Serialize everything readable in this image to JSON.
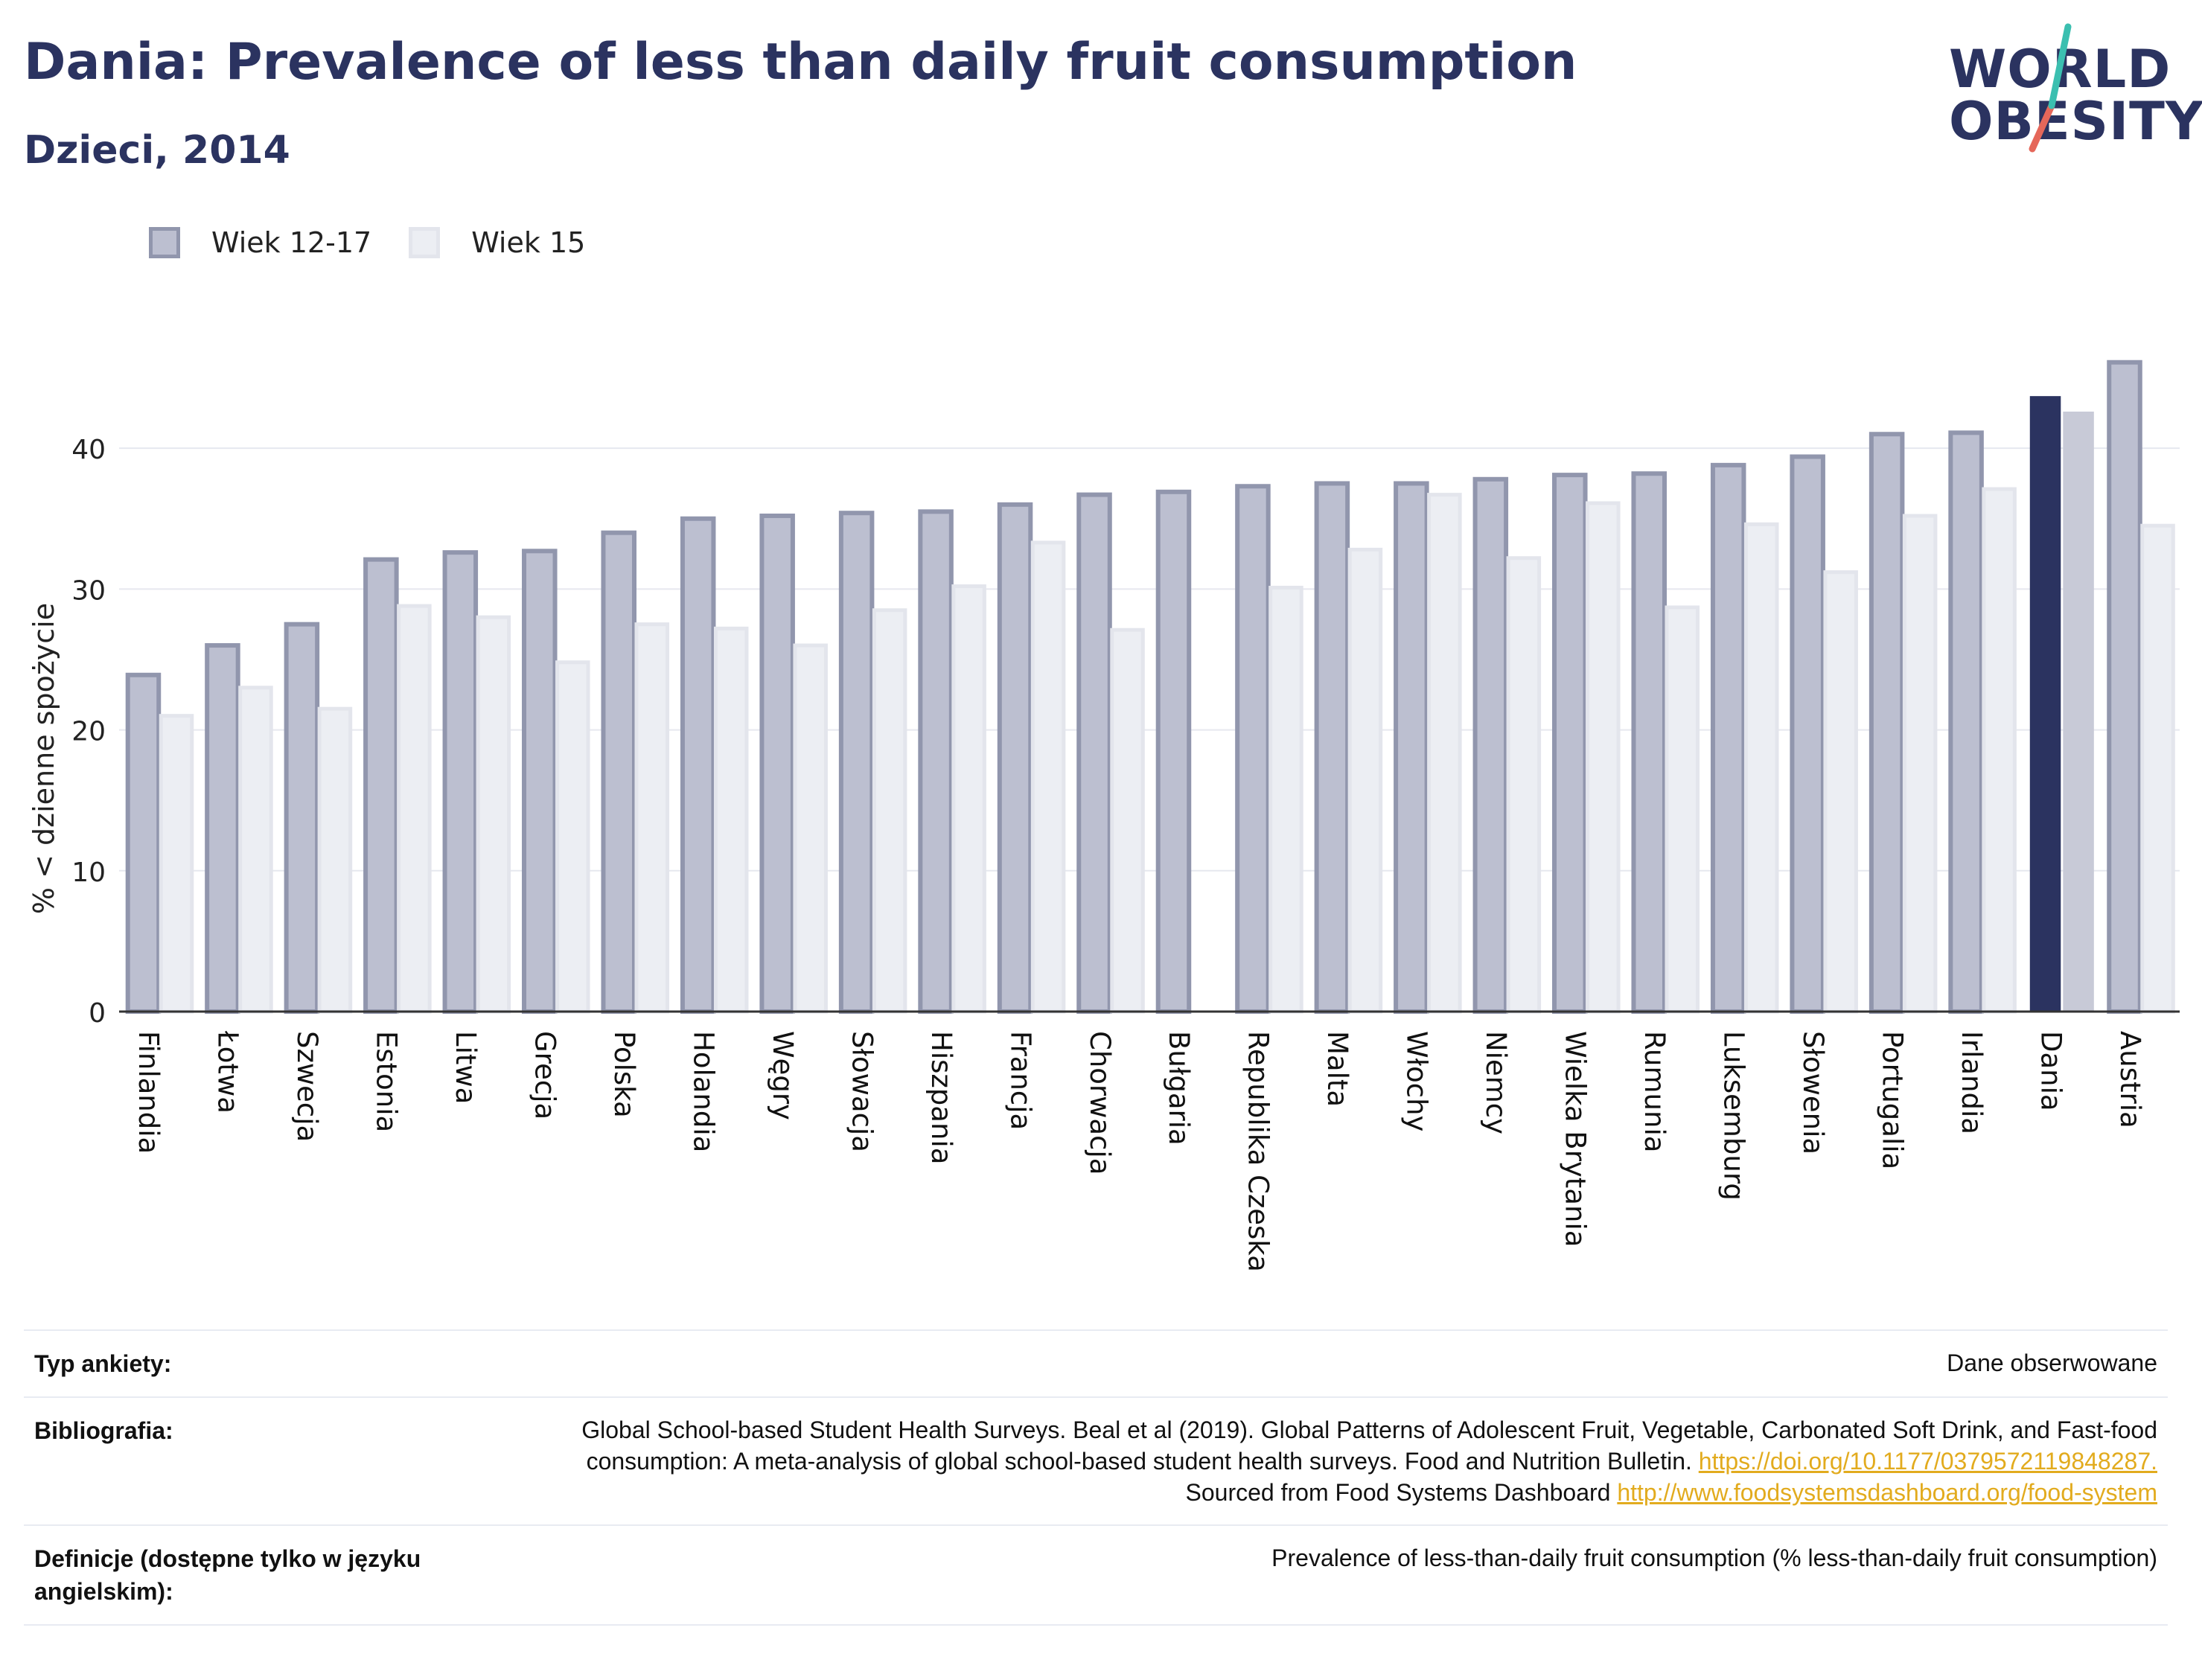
{
  "header": {
    "title": "Dania: Prevalence of less than daily fruit consumption",
    "subtitle": "Dzieci, 2014"
  },
  "logo": {
    "line1": "WORLD",
    "line2": "OBESITY",
    "accent_teal": "#3bbfb0",
    "accent_red": "#e5675a"
  },
  "legend": {
    "items": [
      {
        "label": "Wiek 12-17",
        "color": "#bcbfd0",
        "border": "#9196ad"
      },
      {
        "label": "Wiek 15",
        "color": "#eceef3",
        "border": "#e3e5ec"
      }
    ]
  },
  "chart_data": {
    "type": "bar",
    "ylabel": "% < dzienne spożycie",
    "ylim": [
      0,
      48
    ],
    "yticks": [
      0,
      10,
      20,
      30,
      40
    ],
    "highlight_category": "Dania",
    "highlight_colors": {
      "Wiek 12-17": "#2b3360",
      "Wiek 15": "#c8cad7"
    },
    "grid": true,
    "legend_position": "top-left",
    "categories": [
      "Finlandia",
      "Łotwa",
      "Szwecja",
      "Estonia",
      "Litwa",
      "Grecja",
      "Polska",
      "Holandia",
      "Węgry",
      "Słowacja",
      "Hiszpania",
      "Francja",
      "Chorwacja",
      "Bułgaria",
      "Republika Czeska",
      "Malta",
      "Włochy",
      "Niemcy",
      "Wielka Brytania",
      "Rumunia",
      "Luksemburg",
      "Słowenia",
      "Portugalia",
      "Irlandia",
      "Dania",
      "Austria"
    ],
    "series": [
      {
        "name": "Wiek 12-17",
        "values": [
          23.9,
          26.0,
          27.5,
          32.1,
          32.6,
          32.7,
          34.0,
          35.0,
          35.2,
          35.4,
          35.5,
          36.0,
          36.7,
          36.9,
          37.3,
          37.5,
          37.5,
          37.8,
          38.1,
          38.2,
          38.8,
          39.4,
          41.0,
          41.1,
          43.7,
          46.1
        ]
      },
      {
        "name": "Wiek 15",
        "values": [
          21.0,
          23.0,
          21.5,
          28.8,
          28.0,
          24.8,
          27.5,
          27.2,
          26.0,
          28.5,
          30.2,
          33.3,
          27.1,
          null,
          30.1,
          32.8,
          36.7,
          32.2,
          36.1,
          28.7,
          34.6,
          31.2,
          35.2,
          37.1,
          42.6,
          34.5
        ]
      }
    ]
  },
  "meta": [
    {
      "key": "Typ ankiety:",
      "value": "Dane obserwowane"
    },
    {
      "key": "Bibliografia:",
      "value_parts": [
        "Global School-based Student Health Surveys. Beal et al (2019). Global Patterns of Adolescent Fruit, Vegetable, Carbonated Soft Drink, and Fast-food consumption: A meta-analysis of global school-based student health surveys. Food and Nutrition Bulletin. ",
        "https://doi.org/10.1177/0379572119848287.",
        " Sourced from Food Systems Dashboard ",
        "http://www.foodsystemsdashboard.org/food-system"
      ]
    },
    {
      "key": "Definicje (dostępne tylko w języku angielskim):",
      "value": "Prevalence of less-than-daily fruit consumption (% less-than-daily fruit consumption)"
    }
  ]
}
